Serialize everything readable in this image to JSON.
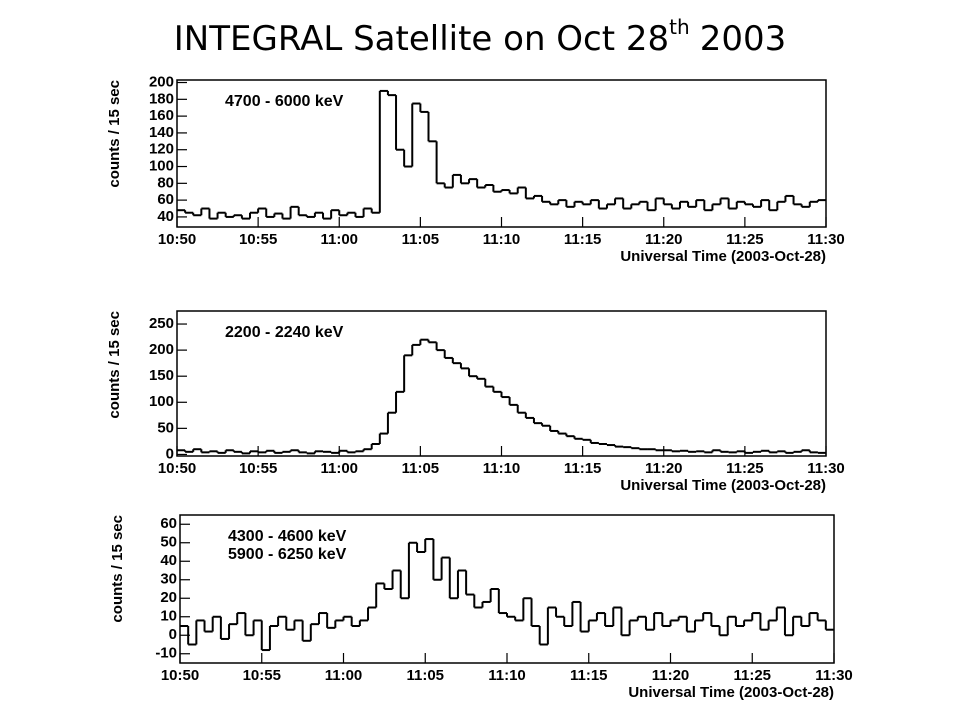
{
  "title": {
    "text": "INTEGRAL Satellite on Oct 28",
    "sup": "th",
    "after": "2003"
  },
  "chart_data": [
    {
      "type": "histogram",
      "labels": [
        "4700 - 6000 keV"
      ],
      "ylabel": "counts / 15 sec",
      "xlabel": "Universal Time (2003-Oct-28)",
      "bins": [
        0,
        0.5,
        1,
        1.5,
        2,
        2.5,
        3,
        3.5,
        4,
        4.5,
        5,
        5.5,
        6,
        6.5,
        7,
        7.5,
        8,
        8.5,
        9,
        9.5,
        10,
        10.5,
        11,
        11.5,
        12,
        12.5,
        13,
        13.5,
        14,
        14.5,
        15,
        15.5,
        16,
        16.5,
        17,
        17.5,
        18,
        18.5,
        19,
        19.5,
        20,
        20.5,
        21,
        21.5,
        22,
        22.5,
        23,
        23.5,
        24,
        24.5,
        25,
        25.5,
        26,
        26.5,
        27,
        27.5,
        28,
        28.5,
        29,
        29.5,
        30,
        30.5,
        31,
        31.5,
        32,
        32.5,
        33,
        33.5,
        34,
        34.5,
        35,
        35.5,
        36,
        36.5,
        37,
        37.5,
        38,
        38.5,
        39,
        39.5,
        40
      ],
      "values": [
        48,
        45,
        42,
        50,
        38,
        45,
        40,
        42,
        38,
        45,
        50,
        40,
        44,
        38,
        52,
        42,
        40,
        45,
        38,
        48,
        42,
        45,
        40,
        50,
        45,
        190,
        185,
        120,
        100,
        175,
        165,
        130,
        80,
        75,
        90,
        80,
        85,
        75,
        78,
        70,
        72,
        68,
        75,
        62,
        65,
        58,
        55,
        60,
        52,
        58,
        55,
        60,
        50,
        55,
        62,
        50,
        55,
        58,
        48,
        62,
        55,
        50,
        58,
        52,
        60,
        48,
        55,
        62,
        50,
        58,
        55,
        52,
        60,
        48,
        58,
        65,
        55,
        52,
        58,
        60
      ],
      "color": "#000000",
      "xlim": [
        0,
        40
      ],
      "ylim": [
        28,
        203
      ],
      "yticks": [
        40,
        60,
        80,
        100,
        120,
        140,
        160,
        180,
        200
      ],
      "xticks": [
        {
          "value": 0,
          "label": "10:50"
        },
        {
          "value": 5,
          "label": "10:55"
        },
        {
          "value": 10,
          "label": "11:00"
        },
        {
          "value": 15,
          "label": "11:05"
        },
        {
          "value": 20,
          "label": "11:10"
        },
        {
          "value": 25,
          "label": "11:15"
        },
        {
          "value": 30,
          "label": "11:20"
        },
        {
          "value": 35,
          "label": "11:25"
        },
        {
          "value": 40,
          "label": "11:30"
        }
      ]
    },
    {
      "type": "histogram",
      "labels": [
        "2200 - 2240 keV"
      ],
      "ylabel": "counts / 15 sec",
      "xlabel": "Universal Time (2003-Oct-28)",
      "bins": [
        0,
        0.5,
        1,
        1.5,
        2,
        2.5,
        3,
        3.5,
        4,
        4.5,
        5,
        5.5,
        6,
        6.5,
        7,
        7.5,
        8,
        8.5,
        9,
        9.5,
        10,
        10.5,
        11,
        11.5,
        12,
        12.5,
        13,
        13.5,
        14,
        14.5,
        15,
        15.5,
        16,
        16.5,
        17,
        17.5,
        18,
        18.5,
        19,
        19.5,
        20,
        20.5,
        21,
        21.5,
        22,
        22.5,
        23,
        23.5,
        24,
        24.5,
        25,
        25.5,
        26,
        26.5,
        27,
        27.5,
        28,
        28.5,
        29,
        29.5,
        30,
        30.5,
        31,
        31.5,
        32,
        32.5,
        33,
        33.5,
        34,
        34.5,
        35,
        35.5,
        36,
        36.5,
        37,
        37.5,
        38,
        38.5,
        39,
        39.5,
        40
      ],
      "values": [
        8,
        5,
        10,
        4,
        6,
        3,
        8,
        5,
        2,
        6,
        4,
        7,
        3,
        5,
        8,
        4,
        2,
        6,
        5,
        3,
        7,
        4,
        6,
        10,
        20,
        40,
        80,
        120,
        190,
        210,
        220,
        215,
        200,
        185,
        175,
        165,
        150,
        145,
        130,
        120,
        110,
        95,
        80,
        70,
        60,
        55,
        45,
        40,
        35,
        30,
        28,
        22,
        20,
        18,
        15,
        14,
        12,
        10,
        10,
        8,
        8,
        6,
        7,
        5,
        6,
        4,
        8,
        5,
        4,
        6,
        3,
        5,
        7,
        4,
        6,
        3,
        5,
        8,
        4,
        3
      ],
      "color": "#000000",
      "xlim": [
        0,
        40
      ],
      "ylim": [
        -3,
        275
      ],
      "yticks": [
        0,
        50,
        100,
        150,
        200,
        250
      ],
      "xticks": [
        {
          "value": 0,
          "label": "10:50"
        },
        {
          "value": 5,
          "label": "10:55"
        },
        {
          "value": 10,
          "label": "11:00"
        },
        {
          "value": 15,
          "label": "11:05"
        },
        {
          "value": 20,
          "label": "11:10"
        },
        {
          "value": 25,
          "label": "11:15"
        },
        {
          "value": 30,
          "label": "11:20"
        },
        {
          "value": 35,
          "label": "11:25"
        },
        {
          "value": 40,
          "label": "11:30"
        }
      ]
    },
    {
      "type": "histogram",
      "labels": [
        "4300 - 4600 keV",
        "5900 - 6250 keV"
      ],
      "ylabel": "counts / 15 sec",
      "xlabel": "Universal Time (2003-Oct-28)",
      "bins": [
        0,
        0.5,
        1,
        1.5,
        2,
        2.5,
        3,
        3.5,
        4,
        4.5,
        5,
        5.5,
        6,
        6.5,
        7,
        7.5,
        8,
        8.5,
        9,
        9.5,
        10,
        10.5,
        11,
        11.5,
        12,
        12.5,
        13,
        13.5,
        14,
        14.5,
        15,
        15.5,
        16,
        16.5,
        17,
        17.5,
        18,
        18.5,
        19,
        19.5,
        20,
        20.5,
        21,
        21.5,
        22,
        22.5,
        23,
        23.5,
        24,
        24.5,
        25,
        25.5,
        26,
        26.5,
        27,
        27.5,
        28,
        28.5,
        29,
        29.5,
        30,
        30.5,
        31,
        31.5,
        32,
        32.5,
        33,
        33.5,
        34,
        34.5,
        35,
        35.5,
        36,
        36.5,
        37,
        37.5,
        38,
        38.5,
        39,
        39.5,
        40
      ],
      "values": [
        5,
        -5,
        8,
        2,
        10,
        -2,
        6,
        12,
        0,
        8,
        -8,
        5,
        10,
        3,
        8,
        -3,
        6,
        12,
        4,
        8,
        10,
        5,
        8,
        15,
        28,
        25,
        35,
        20,
        50,
        45,
        52,
        30,
        42,
        20,
        35,
        22,
        15,
        18,
        25,
        12,
        10,
        8,
        20,
        5,
        -5,
        15,
        10,
        5,
        18,
        2,
        8,
        12,
        5,
        15,
        0,
        8,
        10,
        3,
        12,
        5,
        8,
        10,
        2,
        8,
        12,
        5,
        0,
        10,
        5,
        8,
        12,
        3,
        8,
        15,
        0,
        10,
        5,
        12,
        8,
        3
      ],
      "color": "#000000",
      "xlim": [
        0,
        40
      ],
      "ylim": [
        -15,
        65
      ],
      "yticks": [
        -10,
        0,
        10,
        20,
        30,
        40,
        50,
        60
      ],
      "xticks": [
        {
          "value": 0,
          "label": "10:50"
        },
        {
          "value": 5,
          "label": "10:55"
        },
        {
          "value": 10,
          "label": "11:00"
        },
        {
          "value": 15,
          "label": "11:05"
        },
        {
          "value": 20,
          "label": "11:10"
        },
        {
          "value": 25,
          "label": "11:15"
        },
        {
          "value": 30,
          "label": "11:20"
        },
        {
          "value": 35,
          "label": "11:25"
        },
        {
          "value": 40,
          "label": "11:30"
        }
      ]
    }
  ]
}
